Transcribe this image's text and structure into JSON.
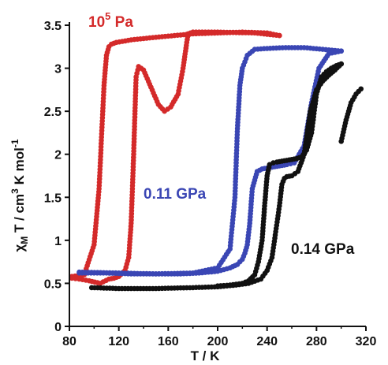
{
  "chart_data": {
    "type": "scatter",
    "title": "",
    "xlabel": "T / K",
    "ylabel_parts": {
      "chi": "χ",
      "sub_m": "M",
      "mid": " T / cm",
      "sup3": "3",
      "tail": " K mol",
      "sup_neg1": "-1"
    },
    "xlim": [
      80,
      320
    ],
    "ylim": [
      0,
      3.5
    ],
    "xticks": [
      "80",
      "120",
      "160",
      "200",
      "240",
      "280",
      "320"
    ],
    "yticks": [
      "0",
      "0.5",
      "1",
      "1.5",
      "2",
      "2.5",
      "3",
      "3.5"
    ],
    "grid": false,
    "legend": "none",
    "annotations": [
      {
        "id": "ann-red",
        "base": "10",
        "sup": "5",
        "tail": " Pa",
        "color": "#d42a2a"
      },
      {
        "id": "ann-blue",
        "text": "0.11 GPa",
        "color": "#3a46b4"
      },
      {
        "id": "ann-black",
        "text": "0.14 GPa",
        "color": "#111111"
      }
    ],
    "series": [
      {
        "color": "#d42a2a",
        "branches": [
          {
            "x": [
              82,
              92,
              100,
              104,
              106,
              108,
              110,
              112,
              114,
              118,
              130,
              150,
              180,
              200,
              220,
              240,
              250
            ],
            "y": [
              0.58,
              0.6,
              0.95,
              1.6,
              2.2,
              2.8,
              3.15,
              3.25,
              3.28,
              3.3,
              3.33,
              3.36,
              3.4,
              3.41,
              3.42,
              3.41,
              3.38
            ]
          },
          {
            "x": [
              250,
              230,
              200,
              180,
              176,
              174,
              172,
              168,
              162,
              157,
              152,
              146,
              140,
              136,
              134,
              132,
              130,
              128,
              125,
              120,
              116,
              112,
              105,
              96,
              88,
              82
            ],
            "y": [
              3.38,
              3.41,
              3.42,
              3.42,
              3.4,
              3.2,
              3.0,
              2.7,
              2.55,
              2.5,
              2.58,
              2.78,
              2.98,
              3.02,
              2.9,
              2.0,
              1.2,
              0.8,
              0.65,
              0.58,
              0.56,
              0.55,
              0.5,
              0.53,
              0.55,
              0.56
            ]
          }
        ]
      },
      {
        "color": "#3a46b4",
        "branches": [
          {
            "x": [
              88,
              120,
              150,
              180,
              200,
              210,
              214,
              216,
              218,
              220,
              224,
              230,
              240,
              255,
              270,
              285,
              300
            ],
            "y": [
              0.63,
              0.62,
              0.61,
              0.62,
              0.68,
              0.9,
              1.5,
              2.3,
              2.8,
              3.0,
              3.15,
              3.22,
              3.23,
              3.24,
              3.24,
              3.22,
              3.2
            ]
          },
          {
            "x": [
              300,
              290,
              282,
              276,
              270,
              262,
              256,
              252,
              248,
              244,
              240,
              236,
              232,
              228,
              226,
              224,
              222,
              220,
              216,
              210,
              200,
              185,
              170,
              150,
              130,
              110,
              95,
              88
            ],
            "y": [
              3.2,
              3.17,
              3.0,
              2.6,
              2.1,
              1.9,
              1.88,
              1.87,
              1.86,
              1.85,
              1.84,
              1.83,
              1.8,
              1.6,
              1.2,
              0.95,
              0.85,
              0.78,
              0.72,
              0.68,
              0.64,
              0.62,
              0.61,
              0.61,
              0.61,
              0.62,
              0.62,
              0.62
            ]
          }
        ]
      },
      {
        "color": "#111111",
        "branches": [
          {
            "x": [
              98,
              120,
              150,
              180,
              200,
              215,
              225,
              235,
              240,
              244,
              247,
              250,
              252,
              254,
              256,
              260,
              265,
              270,
              275,
              280,
              285,
              290,
              295,
              300
            ],
            "y": [
              0.45,
              0.44,
              0.44,
              0.45,
              0.46,
              0.48,
              0.5,
              0.55,
              0.65,
              0.8,
              1.1,
              1.4,
              1.65,
              1.72,
              1.74,
              1.75,
              1.8,
              2.0,
              2.5,
              2.75,
              2.85,
              2.92,
              2.98,
              3.05
            ]
          },
          {
            "x": [
              300,
              296,
              292,
              288,
              284,
              280,
              276,
              272,
              268,
              264,
              260,
              256,
              252,
              248,
              245,
              242,
              240,
              238,
              236,
              233,
              230,
              225,
              220,
              210,
              200
            ],
            "y": [
              3.05,
              3.03,
              3.0,
              2.96,
              2.9,
              2.7,
              2.25,
              2.05,
              1.97,
              1.95,
              1.94,
              1.93,
              1.92,
              1.91,
              1.9,
              1.88,
              1.75,
              1.4,
              1.0,
              0.75,
              0.6,
              0.53,
              0.5,
              0.48,
              0.47
            ]
          },
          {
            "x": [
              300,
              304,
              308,
              312,
              316
            ],
            "y": [
              2.15,
              2.4,
              2.6,
              2.7,
              2.76
            ]
          }
        ]
      }
    ]
  }
}
